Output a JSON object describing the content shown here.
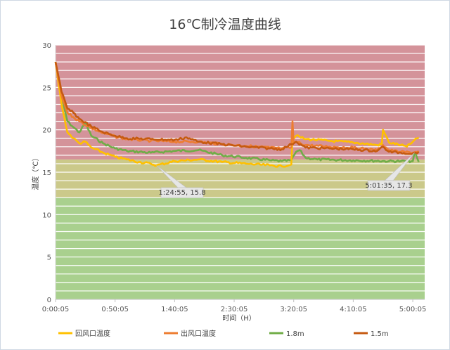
{
  "chart_data": {
    "type": "line",
    "title": "16℃制冷温度曲线",
    "xlabel": "时间（H）",
    "ylabel": "温度（℃）",
    "ylim": [
      0,
      30
    ],
    "y_ticks": [
      "0",
      "5",
      "10",
      "15",
      "20",
      "25",
      "30"
    ],
    "x_ticks": [
      "0:00:05",
      "0:50:05",
      "1:40:05",
      "2:30:05",
      "3:20:05",
      "4:10:05",
      "5:00:05"
    ],
    "x_range_seconds": [
      5,
      18605
    ],
    "grid": true,
    "legend_position": "bottom",
    "background_bands": [
      {
        "from": 0,
        "to": 12,
        "color": "#a9d08e"
      },
      {
        "from": 12,
        "to": 16.5,
        "color": "#cbc98a"
      },
      {
        "from": 16.5,
        "to": 30,
        "color": "#d4939a"
      }
    ],
    "series": [
      {
        "name": "回风口温度",
        "color": "#ffc000",
        "x": [
          "0:00:05",
          "0:05:05",
          "0:10:05",
          "0:15:05",
          "0:20:05",
          "0:25:05",
          "0:30:05",
          "0:40:05",
          "0:50:05",
          "1:00:05",
          "1:10:05",
          "1:20:05",
          "1:24:55",
          "1:40:05",
          "2:00:05",
          "2:20:05",
          "2:40:05",
          "3:00:05",
          "3:10:05",
          "3:18:05",
          "3:19:05",
          "3:22:05",
          "3:30:05",
          "3:50:05",
          "4:10:05",
          "4:30:05",
          "4:34:05",
          "4:35:05",
          "4:40:05",
          "4:50:05",
          "4:55:05",
          "5:00:05",
          "5:05:05"
        ],
        "values": [
          28.0,
          23.0,
          19.7,
          19.0,
          18.4,
          18.6,
          17.9,
          17.3,
          16.8,
          16.5,
          16.2,
          16.0,
          15.8,
          16.3,
          16.5,
          16.2,
          16.0,
          15.8,
          15.7,
          15.9,
          19.0,
          19.3,
          18.9,
          18.7,
          18.5,
          18.2,
          18.3,
          20.0,
          18.5,
          18.2,
          18.0,
          18.6,
          19.1
        ]
      },
      {
        "name": "出风口温度",
        "color": "#ed7d31",
        "x": [
          "0:00:05",
          "0:05:05",
          "0:10:05",
          "0:15:05",
          "0:20:05",
          "0:30:05",
          "0:40:05",
          "0:50:05",
          "1:00:05",
          "1:20:05",
          "1:40:05",
          "2:00:05",
          "2:20:05",
          "2:40:05",
          "3:00:05",
          "3:10:05",
          "3:18:05",
          "3:19:05",
          "3:20:05",
          "3:22:05",
          "3:30:05",
          "3:50:05",
          "4:10:05",
          "4:30:05",
          "4:35:05",
          "4:40:05",
          "4:50:05",
          "5:00:05",
          "5:05:05"
        ],
        "values": [
          28.0,
          24.0,
          22.0,
          21.5,
          21.0,
          20.2,
          19.6,
          19.2,
          18.9,
          18.7,
          18.6,
          18.6,
          18.3,
          18.1,
          17.9,
          17.8,
          17.9,
          21.0,
          18.4,
          18.6,
          18.2,
          18.0,
          17.9,
          17.6,
          18.2,
          17.6,
          17.4,
          17.3,
          17.5
        ]
      },
      {
        "name": "1.8m",
        "color": "#70ad47",
        "x": [
          "0:00:05",
          "0:05:05",
          "0:10:05",
          "0:15:05",
          "0:20:05",
          "0:25:05",
          "0:30:05",
          "0:40:05",
          "0:50:05",
          "1:00:05",
          "1:20:05",
          "1:40:05",
          "2:00:05",
          "2:20:05",
          "2:40:05",
          "3:00:05",
          "3:10:05",
          "3:18:05",
          "3:22:05",
          "3:25:05",
          "3:30:05",
          "3:40:05",
          "4:10:05",
          "4:40:05",
          "4:50:05",
          "5:00:05",
          "5:01:35",
          "5:05:05"
        ],
        "values": [
          28.0,
          24.0,
          21.0,
          20.3,
          19.7,
          20.8,
          19.3,
          18.4,
          17.8,
          17.5,
          17.3,
          17.5,
          17.6,
          17.0,
          16.7,
          16.4,
          16.3,
          16.4,
          17.4,
          17.6,
          16.7,
          16.5,
          16.4,
          16.3,
          16.3,
          16.3,
          17.3,
          16.2
        ]
      },
      {
        "name": "1.5m",
        "color": "#c55a11",
        "x": [
          "0:00:05",
          "0:05:05",
          "0:10:05",
          "0:15:05",
          "0:20:05",
          "0:30:05",
          "0:40:05",
          "0:50:05",
          "1:00:05",
          "1:20:05",
          "1:40:05",
          "1:50:05",
          "2:00:05",
          "2:20:05",
          "2:40:05",
          "3:00:05",
          "3:10:05",
          "3:18:05",
          "3:22:05",
          "3:30:05",
          "3:50:05",
          "4:10:05",
          "4:30:05",
          "4:35:05",
          "4:40:05",
          "4:50:05",
          "5:00:05",
          "5:05:05"
        ],
        "values": [
          28.0,
          24.5,
          22.5,
          22.0,
          21.3,
          20.4,
          19.7,
          19.3,
          19.0,
          18.9,
          18.8,
          19.1,
          18.6,
          18.3,
          18.0,
          17.8,
          17.7,
          18.3,
          18.6,
          17.9,
          17.8,
          17.7,
          17.5,
          18.0,
          17.4,
          17.3,
          17.2,
          17.4
        ]
      }
    ],
    "annotations": [
      {
        "label": "1:24:55, 15.8",
        "x": "1:24:55",
        "y": 15.8,
        "series": "回风口温度"
      },
      {
        "label": "5:01:35, 17.3",
        "x": "5:01:35",
        "y": 17.3,
        "series": "1.8m"
      }
    ]
  }
}
